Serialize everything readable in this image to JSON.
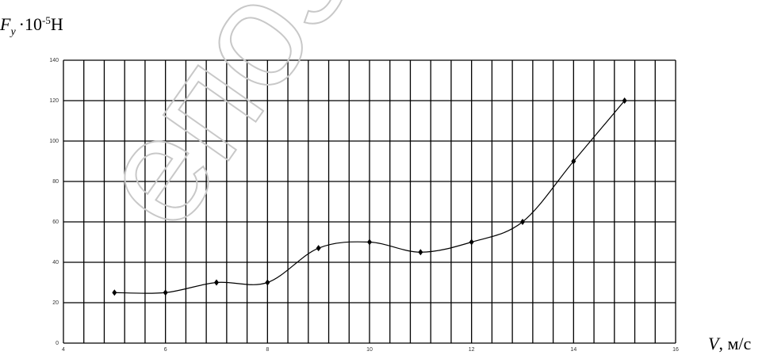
{
  "chart_data": {
    "type": "line",
    "y_label": {
      "symbol": "F",
      "subscript": "y",
      "factor": "·10",
      "exponent": "-5",
      "unit": "H"
    },
    "x_label": {
      "symbol": "V",
      "unit": ", м/с"
    },
    "watermark": "епозит",
    "x": [
      5,
      6,
      7,
      8,
      9,
      10,
      11,
      12,
      13,
      14,
      15
    ],
    "series": [
      {
        "color": "#000000",
        "values": [
          25,
          25,
          30,
          30,
          47,
          50,
          45,
          50,
          60,
          90,
          120
        ]
      }
    ],
    "xlim": [
      4,
      16
    ],
    "xticks": [
      4,
      6,
      8,
      10,
      12,
      14,
      16
    ],
    "ylim": [
      0,
      140
    ],
    "yticks": [
      0,
      20,
      40,
      60,
      80,
      100,
      120,
      140
    ],
    "x_minor_per_major": 5,
    "grid": true,
    "smooth": true
  }
}
